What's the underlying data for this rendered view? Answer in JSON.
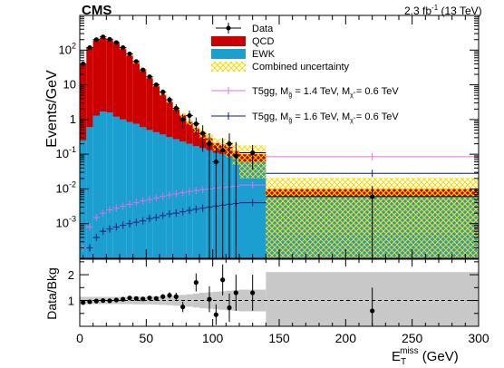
{
  "header": {
    "experiment": "CMS",
    "lumi_prefix": "2.3 fb",
    "lumi_exponent": "-1",
    "lumi_suffix": " (13 TeV)"
  },
  "legend": {
    "data": "Data",
    "qcd": "QCD",
    "ewk": "EWK",
    "unc": "Combined uncertainty",
    "sig1": {
      "prefix": "T5gg, M",
      "sub_g": "g̃",
      "mid": " = 1.4 TeV, M",
      "sub_chi": "χ̃",
      "sup_chi": "0",
      "sub_idx": "1",
      "suffix": " = 0.6 TeV"
    },
    "sig2": {
      "prefix": "T5gg, M",
      "sub_g": "g̃",
      "mid": " = 1.6 TeV, M",
      "sub_chi": "χ̃",
      "sup_chi": "0",
      "sub_idx": "1",
      "suffix": " = 0.6 TeV"
    }
  },
  "colors": {
    "qcd": "#cc0000",
    "ewk": "#1a9fd0",
    "unc": "#ffd700",
    "sig1": "#e070e0",
    "sig2": "#0a1f6e",
    "ratio_band": "#c8c8c8"
  },
  "chart_data": {
    "type": "bar",
    "title": "",
    "xlabel": "E",
    "xlabel_sub": "T",
    "xlabel_sup": "miss",
    "xlabel_unit": "(GeV)",
    "ylabel": "Events/GeV",
    "ratio_ylabel": "Data/Bkg",
    "xlim": [
      0,
      300
    ],
    "ylim": [
      0.0001,
      1000
    ],
    "yscale": "log",
    "ratio_ylim": [
      0,
      2.6
    ],
    "x_ticks": [
      0,
      50,
      100,
      150,
      200,
      250,
      300
    ],
    "y_tick_labels": [
      "10^{-3}",
      "10^{-2}",
      "10^{-1}",
      "1",
      "10",
      "10^{2}"
    ],
    "y_tick_values": [
      0.001,
      0.01,
      0.1,
      1,
      10,
      100
    ],
    "ratio_ticks": [
      1,
      2
    ],
    "bin_edges": [
      0,
      5,
      10,
      15,
      20,
      25,
      30,
      35,
      40,
      45,
      50,
      55,
      60,
      65,
      70,
      75,
      80,
      85,
      90,
      95,
      100,
      105,
      110,
      115,
      120,
      140,
      300
    ],
    "qcd": [
      40,
      120,
      190,
      220,
      200,
      160,
      110,
      70,
      42,
      25,
      15,
      9,
      5,
      3,
      1.9,
      1.1,
      0.65,
      0.4,
      0.25,
      0.16,
      0.1,
      0.09,
      0.08,
      0.05,
      0.04,
      0.004
    ],
    "ewk": [
      0.25,
      0.6,
      1.3,
      1.7,
      1.6,
      1.2,
      1.0,
      0.85,
      0.75,
      0.6,
      0.5,
      0.43,
      0.37,
      0.31,
      0.27,
      0.23,
      0.2,
      0.17,
      0.15,
      0.13,
      0.11,
      0.1,
      0.085,
      0.075,
      0.06,
      0.006
    ],
    "unc": [
      0.05,
      0.05,
      0.05,
      0.05,
      0.05,
      0.05,
      0.05,
      0.05,
      0.06,
      0.06,
      0.06,
      0.07,
      0.08,
      0.1,
      0.12,
      0.15,
      0.2,
      0.25,
      0.3,
      0.35,
      0.4,
      0.45,
      0.5,
      0.6,
      0.8,
      1.1
    ],
    "data_x": [
      2.5,
      7.5,
      12.5,
      17.5,
      22.5,
      27.5,
      32.5,
      37.5,
      42.5,
      47.5,
      52.5,
      57.5,
      62.5,
      67.5,
      72.5,
      77.5,
      82.5,
      87.5,
      92.5,
      97.5,
      102.5,
      107.5,
      112.5,
      117.5,
      130,
      220
    ],
    "data_y": [
      40,
      118,
      200,
      240,
      205,
      165,
      118,
      78,
      47,
      27,
      17,
      10,
      6.2,
      3.7,
      2.1,
      1.0,
      1.3,
      0.75,
      0.4,
      0.2,
      0.06,
      0.13,
      0.2,
      0.09,
      0.11,
      0.006
    ],
    "sig1_x": [
      2.5,
      7.5,
      12.5,
      17.5,
      22.5,
      27.5,
      32.5,
      37.5,
      42.5,
      47.5,
      52.5,
      57.5,
      62.5,
      67.5,
      72.5,
      77.5,
      82.5,
      87.5,
      92.5,
      97.5,
      102.5,
      107.5,
      112.5,
      117.5,
      130,
      220
    ],
    "sig1_y": [
      0.0002,
      0.0008,
      0.0015,
      0.002,
      0.0025,
      0.0028,
      0.0032,
      0.0036,
      0.004,
      0.0045,
      0.005,
      0.0055,
      0.0061,
      0.0067,
      0.0072,
      0.0078,
      0.0084,
      0.009,
      0.0095,
      0.01,
      0.0105,
      0.011,
      0.0115,
      0.012,
      0.013,
      0.085
    ],
    "sig2_x": [
      2.5,
      7.5,
      12.5,
      17.5,
      22.5,
      27.5,
      32.5,
      37.5,
      42.5,
      47.5,
      52.5,
      57.5,
      62.5,
      67.5,
      72.5,
      77.5,
      82.5,
      87.5,
      92.5,
      97.5,
      102.5,
      107.5,
      112.5,
      117.5,
      130,
      220
    ],
    "sig2_y": [
      6e-05,
      0.0002,
      0.0004,
      0.0006,
      0.0007,
      0.0008,
      0.0009,
      0.001,
      0.0011,
      0.0012,
      0.0014,
      0.0015,
      0.0017,
      0.0019,
      0.002,
      0.0022,
      0.0024,
      0.0026,
      0.0028,
      0.003,
      0.0032,
      0.0034,
      0.0036,
      0.0038,
      0.004,
      0.028
    ],
    "ratio": [
      0.92,
      0.95,
      0.98,
      1.0,
      0.99,
      1.02,
      1.05,
      1.1,
      1.08,
      1.06,
      1.1,
      1.08,
      1.15,
      1.2,
      1.15,
      0.75,
      1.7,
      1.05,
      0.45,
      1.8,
      0.72,
      1.3,
      1.3,
      0.6
    ],
    "ratio_x": [
      2.5,
      7.5,
      12.5,
      17.5,
      22.5,
      27.5,
      32.5,
      37.5,
      42.5,
      47.5,
      52.5,
      57.5,
      62.5,
      67.5,
      72.5,
      77.5,
      87.5,
      97.5,
      102.5,
      107.5,
      112.5,
      117.5,
      130,
      220
    ],
    "ratio_err": [
      0.03,
      0.03,
      0.03,
      0.03,
      0.03,
      0.03,
      0.04,
      0.05,
      0.05,
      0.06,
      0.07,
      0.08,
      0.1,
      0.12,
      0.15,
      0.2,
      0.35,
      0.5,
      0.4,
      0.6,
      0.55,
      0.7,
      0.7,
      0.9
    ],
    "ratio_band_half": [
      0.14,
      0.14,
      0.14,
      0.14,
      0.14,
      0.14,
      0.14,
      0.14,
      0.15,
      0.15,
      0.15,
      0.16,
      0.17,
      0.18,
      0.2,
      0.22,
      0.24,
      0.27,
      0.3,
      0.32,
      0.34,
      0.36,
      0.38,
      0.4,
      0.42,
      1.1
    ]
  }
}
